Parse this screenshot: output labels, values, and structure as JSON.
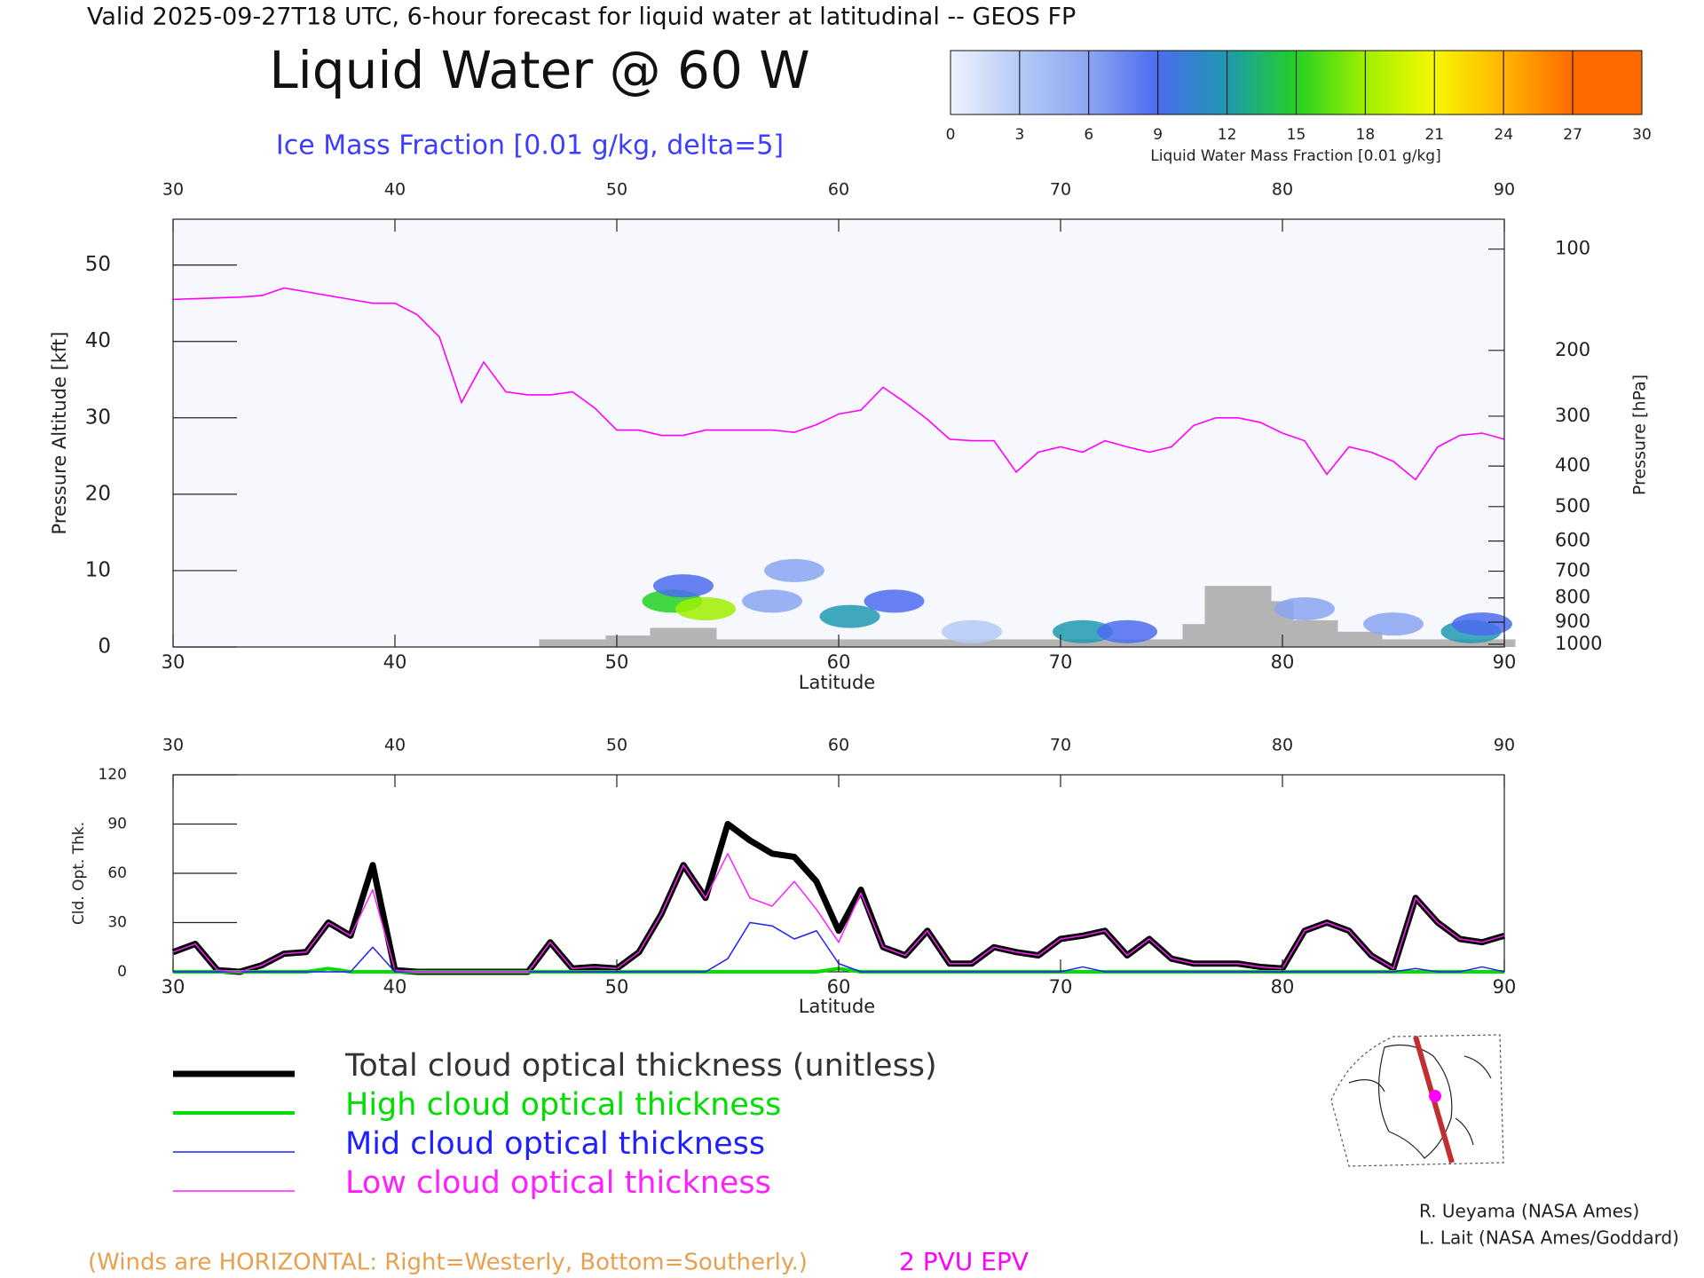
{
  "header": "Valid 2025-09-27T18 UTC, 6-hour forecast for liquid water at latitudinal -- GEOS FP",
  "chart_data": [
    {
      "type": "cross-section",
      "title": "Liquid Water @ 60 W",
      "subtitle": "Ice Mass Fraction [0.01 g/kg, delta=5]",
      "xlabel": "Latitude",
      "ylabel": "Pressure Altitude [kft]",
      "y2label": "Pressure [hPa]",
      "xlim": [
        30,
        90
      ],
      "xticks": [
        30,
        40,
        50,
        60,
        70,
        80,
        90
      ],
      "ylim": [
        0,
        56
      ],
      "yticks": [
        0,
        10,
        20,
        30,
        40,
        50
      ],
      "y2lim": [
        1013,
        80
      ],
      "y2ticks": [
        100,
        200,
        300,
        400,
        500,
        600,
        700,
        800,
        900,
        1000
      ],
      "colorbar": {
        "label": "Liquid Water Mass Fraction [0.01 g/kg]",
        "ticks": [
          0,
          3,
          6,
          9,
          12,
          15,
          18,
          21,
          24,
          27,
          30
        ],
        "colors": [
          "#eef2fc",
          "#b6caf6",
          "#8aa6f2",
          "#4c6cf0",
          "#1e9ab0",
          "#22d022",
          "#9ef000",
          "#f6f800",
          "#ffb400",
          "#ff6a00"
        ]
      },
      "series": [
        {
          "name": "2 PVU EPV",
          "color": "#ff00ff",
          "x": [
            30,
            31,
            32,
            33,
            34,
            35,
            36,
            37,
            38,
            39,
            40,
            41,
            42,
            43,
            44,
            45,
            46,
            47,
            48,
            49,
            50,
            51,
            52,
            53,
            54,
            55,
            56,
            57,
            58,
            59,
            60,
            61,
            62,
            63,
            64,
            65,
            66,
            67,
            68,
            69,
            70,
            71,
            72,
            73,
            74,
            75,
            76,
            77,
            78,
            79,
            80,
            81,
            82,
            83,
            84,
            85,
            86,
            87,
            88,
            89,
            90
          ],
          "values": [
            45.5,
            45.6,
            45.7,
            45.8,
            46,
            47,
            46.5,
            46,
            45.5,
            45,
            45,
            43.5,
            40.6,
            32,
            37.3,
            33.4,
            33,
            33,
            33.4,
            31.3,
            28.4,
            28.4,
            27.7,
            27.7,
            28.4,
            28.4,
            28.4,
            28.4,
            28.1,
            29.1,
            30.5,
            31,
            34,
            32,
            29.8,
            27.2,
            27,
            27,
            22.9,
            25.5,
            26.2,
            25.5,
            27,
            26.2,
            25.5,
            26.2,
            29,
            30,
            30,
            29.4,
            28,
            27,
            22.6,
            26.2,
            25.5,
            24.3,
            21.9,
            26.2,
            27.7,
            28,
            27.2
          ]
        },
        {
          "color": "#b4b4b4",
          "x": [
            47,
            48,
            49,
            50,
            51,
            52,
            53,
            54,
            55,
            56,
            57,
            58,
            59,
            60,
            61,
            62,
            63,
            64,
            65,
            66,
            67,
            68,
            69,
            70,
            71,
            72,
            73,
            74,
            75,
            76,
            77,
            78,
            79,
            80,
            81,
            82,
            83,
            84,
            85,
            86,
            87,
            88,
            89,
            90
          ],
          "values": [
            1,
            1,
            1,
            1.5,
            1.5,
            2.5,
            2.5,
            2.5,
            1,
            1,
            1,
            1,
            1,
            1,
            1,
            1,
            1,
            1,
            1,
            1,
            1,
            1,
            1,
            1,
            1,
            1,
            1,
            1,
            1,
            3,
            8,
            8,
            8,
            6,
            3.5,
            3.5,
            2,
            2,
            1,
            1,
            1,
            1,
            1,
            1
          ]
        }
      ],
      "cloud": {
        "x": [
          52.5,
          54,
          53,
          57,
          60.5,
          62.5,
          71,
          73,
          88.5,
          81,
          85,
          89,
          66,
          58
        ],
        "y": [
          6,
          5,
          8,
          6,
          4,
          6,
          2,
          2,
          2,
          5,
          3,
          3,
          2,
          10
        ],
        "values": [
          16,
          19,
          9,
          8,
          14,
          10,
          13,
          11,
          13,
          7,
          6,
          9,
          5,
          6
        ]
      }
    },
    {
      "type": "line",
      "xlabel": "Latitude",
      "ylabel": "Cld. Opt. Thk.",
      "xlim": [
        30,
        90
      ],
      "xticks": [
        30,
        40,
        50,
        60,
        70,
        80,
        90
      ],
      "ylim": [
        0,
        120
      ],
      "yticks": [
        0,
        30,
        60,
        90,
        120
      ],
      "x": [
        30,
        31,
        32,
        33,
        34,
        35,
        36,
        37,
        38,
        39,
        40,
        41,
        42,
        43,
        44,
        45,
        46,
        47,
        48,
        49,
        50,
        51,
        52,
        53,
        54,
        55,
        56,
        57,
        58,
        59,
        60,
        61,
        62,
        63,
        64,
        65,
        66,
        67,
        68,
        69,
        70,
        71,
        72,
        73,
        74,
        75,
        76,
        77,
        78,
        79,
        80,
        81,
        82,
        83,
        84,
        85,
        86,
        87,
        88,
        89,
        90
      ],
      "series": [
        {
          "name": "Total cloud optical thickness (unitless)",
          "color": "#000000",
          "linewidth": 7,
          "values": [
            12,
            17,
            1,
            0,
            4,
            11,
            12,
            30,
            22,
            65,
            1,
            0,
            0,
            0,
            0,
            0,
            0,
            18,
            2,
            3,
            2,
            12,
            35,
            65,
            45,
            90,
            80,
            72,
            70,
            55,
            25,
            50,
            15,
            10,
            25,
            5,
            5,
            15,
            12,
            10,
            20,
            22,
            25,
            10,
            20,
            8,
            5,
            5,
            5,
            3,
            2,
            25,
            30,
            25,
            10,
            2,
            45,
            30,
            20,
            18,
            22
          ]
        },
        {
          "name": "High cloud optical thickness",
          "color": "#00dd00",
          "linewidth": 4,
          "values": [
            0,
            0,
            0,
            0,
            0,
            0,
            0,
            2,
            0,
            0,
            0,
            0,
            0,
            0,
            0,
            0,
            0,
            0,
            0,
            0,
            0,
            0,
            0,
            0,
            0,
            0,
            0,
            0,
            0,
            0,
            2,
            0,
            0,
            0,
            0,
            0,
            0,
            0,
            0,
            0,
            0,
            0,
            0,
            0,
            0,
            0,
            0,
            0,
            0,
            0,
            0,
            0,
            0,
            0,
            0,
            0,
            0,
            0,
            0,
            0,
            0
          ]
        },
        {
          "name": "Mid cloud optical thickness",
          "color": "#2020ff",
          "linewidth": 1.5,
          "values": [
            0,
            0,
            0,
            0,
            0,
            0,
            0,
            0,
            0,
            15,
            0,
            0,
            0,
            0,
            0,
            0,
            0,
            0,
            0,
            0,
            0,
            0,
            0,
            0,
            0,
            8,
            30,
            28,
            20,
            25,
            5,
            0,
            0,
            0,
            0,
            0,
            0,
            0,
            0,
            0,
            0,
            3,
            0,
            0,
            0,
            0,
            0,
            0,
            0,
            0,
            0,
            0,
            0,
            0,
            0,
            0,
            2,
            0,
            0,
            3,
            0
          ]
        },
        {
          "name": "Low cloud optical thickness",
          "color": "#ff20ff",
          "linewidth": 1.5,
          "values": [
            12,
            17,
            1,
            0,
            4,
            11,
            12,
            30,
            22,
            50,
            1,
            0,
            0,
            0,
            0,
            0,
            0,
            18,
            2,
            3,
            2,
            12,
            35,
            65,
            45,
            72,
            45,
            40,
            55,
            38,
            18,
            48,
            15,
            10,
            25,
            5,
            5,
            15,
            12,
            10,
            20,
            22,
            25,
            10,
            20,
            8,
            5,
            5,
            5,
            3,
            2,
            25,
            30,
            25,
            10,
            2,
            45,
            30,
            20,
            18,
            22
          ]
        }
      ]
    }
  ],
  "note": "(Winds are HORIZONTAL: Right=Westerly, Bottom=Southerly.)",
  "credits": [
    "R. Ueyama (NASA Ames)",
    "L. Lait (NASA Ames/Goddard)"
  ]
}
